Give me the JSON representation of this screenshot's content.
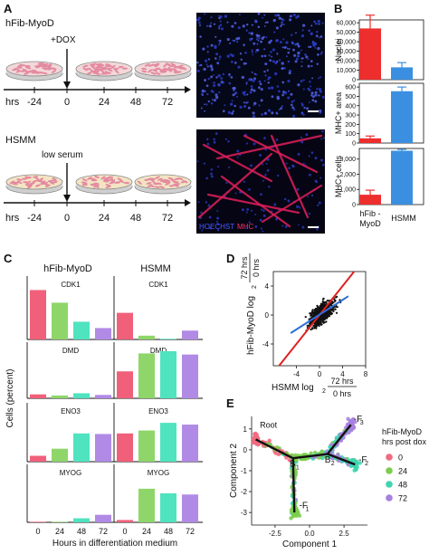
{
  "panel_labels": {
    "a": "A",
    "b": "B",
    "c": "C",
    "d": "D",
    "e": "E"
  },
  "panel_a": {
    "row1_title": "hFib-MyoD",
    "row1_treatment": "+DOX",
    "row2_title": "HSMM",
    "row2_treatment": "low serum",
    "timeline_label": "hrs",
    "timepoints": [
      "-24",
      "0",
      "24",
      "48",
      "72"
    ],
    "stain_hoechst": "HOECHST",
    "stain_mhc": "MHC",
    "colors": {
      "dish_pink": "#e48aa0",
      "dish_base": "#f2d8d8",
      "hsmm_base": "#f3e4c4",
      "nuclei": "#2a3cc8",
      "mhc": "#e0205a"
    }
  },
  "panel_b": {
    "xcats": [
      "hFib - MyoD",
      "HSMM"
    ],
    "colors": [
      "#ee2d2d",
      "#3b8fe0"
    ],
    "charts": [
      {
        "ylabel": "Nuclei",
        "ticks": [
          "0",
          "10,000",
          "20,000",
          "30,000",
          "40,000",
          "50,000",
          "60,000"
        ],
        "tickvals": [
          0,
          10000,
          20000,
          30000,
          40000,
          50000,
          60000
        ],
        "ymax": 63000,
        "values": [
          54000,
          13000
        ],
        "errors": [
          14000,
          5000
        ]
      },
      {
        "ylabel": "MHC+ area",
        "ticks": [
          "0",
          "100",
          "200",
          "300",
          "400",
          "500",
          "600"
        ],
        "tickvals": [
          0,
          100,
          200,
          300,
          400,
          500,
          600
        ],
        "ymax": 640,
        "values": [
          50,
          555
        ],
        "errors": [
          25,
          45
        ]
      },
      {
        "ylabel": "MHC+ cells",
        "ticks": [
          "0",
          "1,000",
          "2,000",
          "3,000"
        ],
        "tickvals": [
          0,
          1000,
          2000,
          3000
        ],
        "ymax": 3700,
        "values": [
          650,
          3550
        ],
        "errors": [
          300,
          90
        ]
      }
    ]
  },
  "panel_c": {
    "col_titles": [
      "hFib-MyoD",
      "HSMM"
    ],
    "ylabel": "Cells (percent)",
    "xlabel": "Hours in differentiation medium",
    "xticks": [
      "0",
      "24",
      "48",
      "72",
      "0",
      "24",
      "48",
      "72"
    ],
    "ymax": 100,
    "colors": [
      "#f0607a",
      "#8ed66a",
      "#4fe3bf",
      "#b18ae6"
    ],
    "genes": [
      {
        "name": "CDK1",
        "fib": [
          78,
          58,
          28,
          18
        ],
        "hsmm": [
          42,
          6,
          1,
          14
        ]
      },
      {
        "name": "DMD",
        "fib": [
          7,
          5,
          9,
          6
        ],
        "hsmm": [
          48,
          80,
          84,
          78
        ]
      },
      {
        "name": "ENO3",
        "fib": [
          10,
          22,
          48,
          47
        ],
        "hsmm": [
          48,
          53,
          66,
          63
        ]
      },
      {
        "name": "MYOG",
        "fib": [
          1,
          1,
          7,
          13
        ],
        "hsmm": [
          4,
          58,
          50,
          48
        ]
      }
    ]
  },
  "panel_d": {
    "xlabel_prefix": "HSMM log",
    "xlabel_sub": "2",
    "frac_num": "72 hrs",
    "frac_den": "0 hrs",
    "ylabel_prefix": "hFib-MyoD log",
    "xticks": [
      "-4",
      "0",
      "4",
      "8"
    ],
    "yticks": [
      "4",
      "0",
      "-4"
    ],
    "xrange": [
      -8,
      8
    ],
    "yrange": [
      -7,
      6
    ],
    "red_line": {
      "x": [
        -8,
        8
      ],
      "y": [
        -8,
        8
      ]
    },
    "blue_line": {
      "x": [
        -5,
        5
      ],
      "y": [
        -2.5,
        2.6
      ]
    },
    "colors": {
      "points": "#111111",
      "red": "#e02020",
      "blue": "#2d6fd8"
    }
  },
  "panel_e": {
    "xlabel": "Component 1",
    "ylabel": "Component 2",
    "xticks": [
      "-2.5",
      "0.0",
      "2.5"
    ],
    "yticks": [
      "1",
      "0",
      "-1",
      "-2",
      "-3"
    ],
    "legend_title": "hFib-MyoD",
    "legend_subtitle": "hrs post dox",
    "legend": [
      {
        "label": "0",
        "color": "#f26a7f"
      },
      {
        "label": "24",
        "color": "#7ccd4e"
      },
      {
        "label": "48",
        "color": "#3fd5b0"
      },
      {
        "label": "72",
        "color": "#a780e0"
      }
    ],
    "annotations": {
      "root": "Root",
      "b1": "B",
      "b1_sub": "1",
      "b2": "B",
      "b2_sub": "2",
      "f1": "F",
      "f1_sub": "1",
      "f2": "F",
      "f2_sub": "2",
      "f3": "F",
      "f3_sub": "3"
    }
  }
}
